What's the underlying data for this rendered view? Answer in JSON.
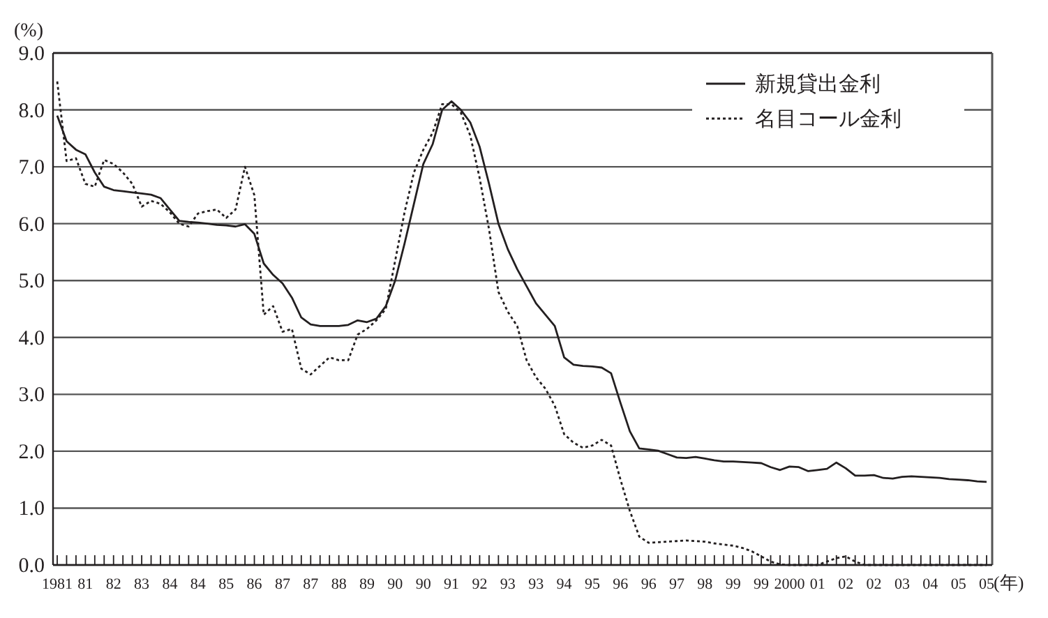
{
  "chart_data": {
    "type": "line",
    "ylabel": "(%)",
    "xlabel": "(年)",
    "categories": [
      "1981",
      null,
      null,
      "81",
      null,
      null,
      "82",
      null,
      null,
      "83",
      null,
      null,
      "84",
      null,
      null,
      "84",
      null,
      null,
      "85",
      null,
      null,
      "86",
      null,
      null,
      "87",
      null,
      null,
      "87",
      null,
      null,
      "88",
      null,
      null,
      "89",
      null,
      null,
      "90",
      null,
      null,
      "90",
      null,
      null,
      "91",
      null,
      null,
      "92",
      null,
      null,
      "93",
      null,
      null,
      "93",
      null,
      null,
      "94",
      null,
      null,
      "95",
      null,
      null,
      "96",
      null,
      null,
      "96",
      null,
      null,
      "97",
      null,
      null,
      "98",
      null,
      null,
      "99",
      null,
      null,
      "99",
      null,
      null,
      "2000",
      null,
      null,
      "01",
      null,
      null,
      "02",
      null,
      null,
      "02",
      null,
      null,
      "03",
      null,
      null,
      "04",
      null,
      null,
      "05",
      null,
      null,
      "05"
    ],
    "ylim": [
      0,
      9
    ],
    "yticks": [
      {
        "value": 0,
        "label": "0.0"
      },
      {
        "value": 1,
        "label": "1.0"
      },
      {
        "value": 2,
        "label": "2.0"
      },
      {
        "value": 3,
        "label": "3.0"
      },
      {
        "value": 4,
        "label": "4.0"
      },
      {
        "value": 5,
        "label": "5.0"
      },
      {
        "value": 6,
        "label": "6.0"
      },
      {
        "value": 7,
        "label": "7.0"
      },
      {
        "value": 8,
        "label": "8.0"
      },
      {
        "value": 9,
        "label": "9.0"
      }
    ],
    "grid": "y",
    "legend": "top right",
    "marker": "none",
    "series": [
      {
        "name": "新規貸出金利",
        "color": "#231f20",
        "line_style": "solid",
        "values": [
          7.9,
          7.45,
          7.3,
          7.22,
          6.9,
          6.65,
          6.59,
          6.57,
          6.55,
          6.53,
          6.51,
          6.45,
          6.25,
          6.05,
          6.03,
          6.02,
          6.0,
          5.98,
          5.97,
          5.95,
          5.99,
          5.82,
          5.3,
          5.1,
          4.95,
          4.7,
          4.35,
          4.23,
          4.2,
          4.2,
          4.2,
          4.22,
          4.3,
          4.27,
          4.33,
          4.55,
          5.0,
          5.65,
          6.35,
          7.05,
          7.4,
          8.0,
          8.15,
          8.0,
          7.78,
          7.35,
          6.7,
          6.0,
          5.55,
          5.2,
          4.9,
          4.6,
          4.4,
          4.2,
          3.65,
          3.52,
          3.5,
          3.49,
          3.47,
          3.37,
          2.85,
          2.35,
          2.05,
          2.03,
          2.01,
          1.95,
          1.89,
          1.88,
          1.9,
          1.87,
          1.84,
          1.82,
          1.82,
          1.81,
          1.8,
          1.79,
          1.72,
          1.67,
          1.73,
          1.72,
          1.65,
          1.67,
          1.69,
          1.8,
          1.7,
          1.57,
          1.57,
          1.58,
          1.53,
          1.52,
          1.55,
          1.56,
          1.55,
          1.54,
          1.53,
          1.51,
          1.5,
          1.49,
          1.47,
          1.46
        ]
      },
      {
        "name": "名目コール金利",
        "color": "#231f20",
        "line_style": "dotted",
        "values": [
          8.5,
          7.1,
          7.15,
          6.7,
          6.65,
          7.12,
          7.05,
          6.9,
          6.7,
          6.3,
          6.4,
          6.35,
          6.2,
          6.0,
          5.95,
          6.18,
          6.22,
          6.25,
          6.1,
          6.25,
          7.0,
          6.5,
          4.4,
          4.55,
          4.1,
          4.15,
          3.45,
          3.35,
          3.5,
          3.65,
          3.6,
          3.6,
          4.05,
          4.15,
          4.3,
          4.5,
          5.35,
          6.2,
          6.9,
          7.3,
          7.6,
          8.1,
          8.1,
          7.95,
          7.55,
          6.8,
          5.9,
          4.8,
          4.45,
          4.2,
          3.6,
          3.3,
          3.1,
          2.8,
          2.3,
          2.15,
          2.06,
          2.1,
          2.2,
          2.1,
          1.5,
          0.95,
          0.5,
          0.39,
          0.4,
          0.41,
          0.42,
          0.43,
          0.42,
          0.41,
          0.38,
          0.36,
          0.34,
          0.3,
          0.24,
          0.15,
          0.06,
          0.01,
          0.0,
          0.0,
          0.0,
          0.0,
          0.06,
          0.12,
          0.15,
          0.06,
          0.0,
          0.0,
          0.0,
          0.0,
          0.0,
          0.0,
          0.0,
          0.0,
          0.0,
          0.0,
          0.0,
          0.0,
          0.0,
          0.0
        ]
      }
    ]
  }
}
